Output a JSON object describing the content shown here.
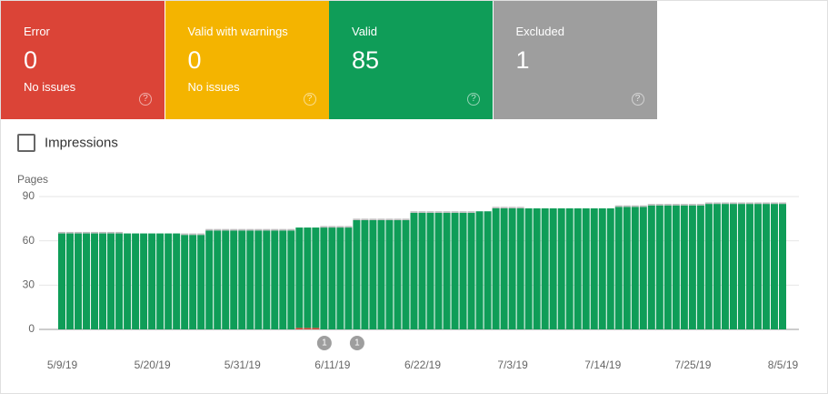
{
  "cards": [
    {
      "label": "Error",
      "value": 0,
      "subtitle": "No issues",
      "color": "#db4437"
    },
    {
      "label": "Valid with warnings",
      "value": 0,
      "subtitle": "No issues",
      "color": "#f4b400"
    },
    {
      "label": "Valid",
      "value": 85,
      "color": "#0f9d58"
    },
    {
      "label": "Excluded",
      "value": 1,
      "color": "#9e9e9e"
    }
  ],
  "checkbox": {
    "label": "Impressions"
  },
  "chart_data": {
    "type": "stacked_bar",
    "y_label": "Pages",
    "categories": [
      "5/9/19",
      null,
      null,
      null,
      null,
      null,
      null,
      null,
      null,
      null,
      null,
      "5/20/19",
      null,
      null,
      null,
      null,
      null,
      null,
      null,
      null,
      null,
      null,
      "5/31/19",
      null,
      null,
      null,
      null,
      null,
      null,
      null,
      null,
      null,
      null,
      "6/11/19",
      null,
      null,
      null,
      null,
      null,
      null,
      null,
      null,
      null,
      null,
      "6/22/19",
      null,
      null,
      null,
      null,
      null,
      null,
      null,
      null,
      null,
      null,
      "7/3/19",
      null,
      null,
      null,
      null,
      null,
      null,
      null,
      null,
      null,
      null,
      "7/14/19",
      null,
      null,
      null,
      null,
      null,
      null,
      null,
      null,
      null,
      null,
      "7/25/19",
      null,
      null,
      null,
      null,
      null,
      null,
      null,
      null,
      null,
      null,
      "8/5/19"
    ],
    "series": [
      {
        "color": "#db4437",
        "values": [
          0,
          0,
          0,
          0,
          0,
          0,
          0,
          0,
          0,
          0,
          0,
          0,
          0,
          0,
          0,
          0,
          0,
          0,
          0,
          0,
          0,
          0,
          0,
          0,
          0,
          0,
          0,
          0,
          0,
          1,
          1,
          1,
          0,
          0,
          0,
          0,
          0,
          0,
          0,
          0,
          0,
          0,
          0,
          0,
          0,
          0,
          0,
          0,
          0,
          0,
          0,
          0,
          0,
          0,
          0,
          0,
          0,
          0,
          0,
          0,
          0,
          0,
          0,
          0,
          0,
          0,
          0,
          0,
          0,
          0,
          0,
          0,
          0,
          0,
          0,
          0,
          0,
          0,
          0,
          0,
          0,
          0,
          0,
          0,
          0,
          0,
          0,
          0,
          0
        ]
      },
      {
        "color": "#0f9d58",
        "values": [
          65,
          65,
          65,
          65,
          65,
          65,
          65,
          65,
          65,
          65,
          65,
          65,
          65,
          65,
          65,
          64,
          64,
          64,
          67,
          67,
          67,
          67,
          67,
          67,
          67,
          67,
          67,
          67,
          67,
          68,
          68,
          68,
          69,
          69,
          69,
          69,
          74,
          74,
          74,
          74,
          74,
          74,
          74,
          79,
          79,
          79,
          79,
          79,
          79,
          79,
          79,
          80,
          80,
          82,
          82,
          82,
          82,
          82,
          82,
          82,
          82,
          82,
          82,
          82,
          82,
          82,
          82,
          82,
          83,
          83,
          83,
          83,
          84,
          84,
          84,
          84,
          84,
          84,
          84,
          85,
          85,
          85,
          85,
          85,
          85,
          85,
          85,
          85,
          85
        ]
      },
      {
        "color": "#bdbdbd",
        "values": [
          1,
          1,
          1,
          1,
          1,
          1,
          1,
          1,
          0,
          0,
          0,
          0,
          0,
          0,
          0,
          1,
          1,
          1,
          1,
          1,
          1,
          1,
          1,
          1,
          1,
          1,
          1,
          1,
          1,
          0,
          0,
          0,
          1,
          1,
          1,
          1,
          1,
          1,
          1,
          1,
          1,
          1,
          1,
          1,
          1,
          1,
          1,
          1,
          1,
          1,
          1,
          0,
          0,
          1,
          1,
          1,
          1,
          0,
          0,
          0,
          0,
          0,
          0,
          0,
          0,
          0,
          0,
          0,
          1,
          1,
          1,
          1,
          1,
          1,
          1,
          1,
          1,
          1,
          1,
          1,
          1,
          1,
          1,
          1,
          1,
          1,
          1,
          1,
          1
        ]
      }
    ],
    "annotations": [
      {
        "category_index": 32,
        "text": "1"
      },
      {
        "category_index": 36,
        "text": "1"
      }
    ],
    "ylim": [
      0,
      90
    ],
    "yticks": [
      0,
      30,
      60,
      90
    ],
    "grid": true
  }
}
